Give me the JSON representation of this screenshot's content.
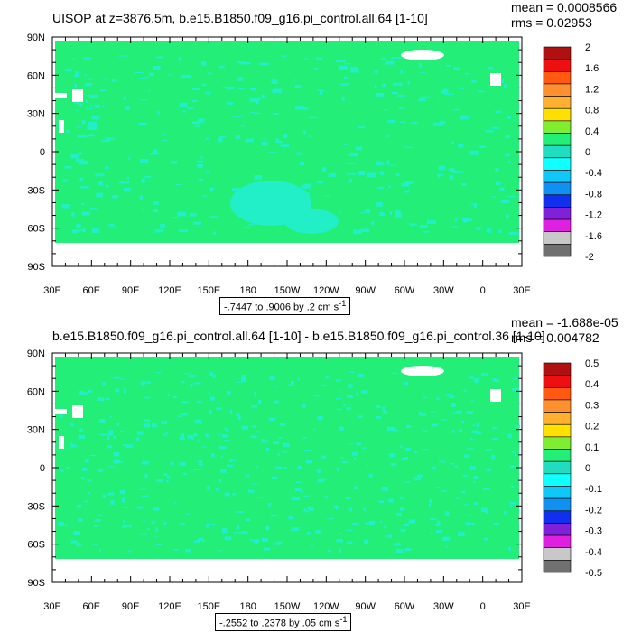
{
  "panels": [
    {
      "title": "UISOP at z=3876.5m, b.e15.B1850.f09_g16.pi_control.all.64 [1-10]",
      "mean": "mean = 0.0008566",
      "rms": "rms = 0.02953",
      "range": "-.7447 to .9006 by .2 cm s",
      "range_sup": "-1",
      "colorbar_labels": [
        "2",
        "1.6",
        "1.2",
        "0.8",
        "0.4",
        "0",
        "-0.4",
        "-0.8",
        "-1.2",
        "-1.6",
        "-2"
      ]
    },
    {
      "title": "b.e15.B1850.f09_g16.pi_control.all.64 [1-10] - b.e15.B1850.f09_g16.pi_control.36 [1-10]",
      "mean": "mean = -1.688e-05",
      "rms": "rms = 0.004782",
      "range": "-.2552 to .2378 by .05 cm s",
      "range_sup": "-1",
      "colorbar_labels": [
        "0.5",
        "0.4",
        "0.3",
        "0.2",
        "0.1",
        "0",
        "-0.1",
        "-0.2",
        "-0.3",
        "-0.4",
        "-0.5"
      ]
    }
  ],
  "lat_labels": [
    "90N",
    "60N",
    "30N",
    "0",
    "30S",
    "60S",
    "90S"
  ],
  "lon_labels": [
    "30E",
    "60E",
    "90E",
    "120E",
    "150E",
    "180",
    "150W",
    "120W",
    "90W",
    "60W",
    "30W",
    "0",
    "30E"
  ],
  "colors": {
    "map_fill": "#23ee78",
    "anomaly": "#22eec8",
    "land_white": "#ffffff",
    "colorbar": [
      "#b01010",
      "#ee1010",
      "#ff5a10",
      "#ff9030",
      "#ffb030",
      "#ffe000",
      "#80ee30",
      "#23ee78",
      "#20ddc0",
      "#10ffff",
      "#10c8f8",
      "#1090f0",
      "#1030ee",
      "#8020d8",
      "#e020e0",
      "#c8c8c8",
      "#707070"
    ]
  }
}
